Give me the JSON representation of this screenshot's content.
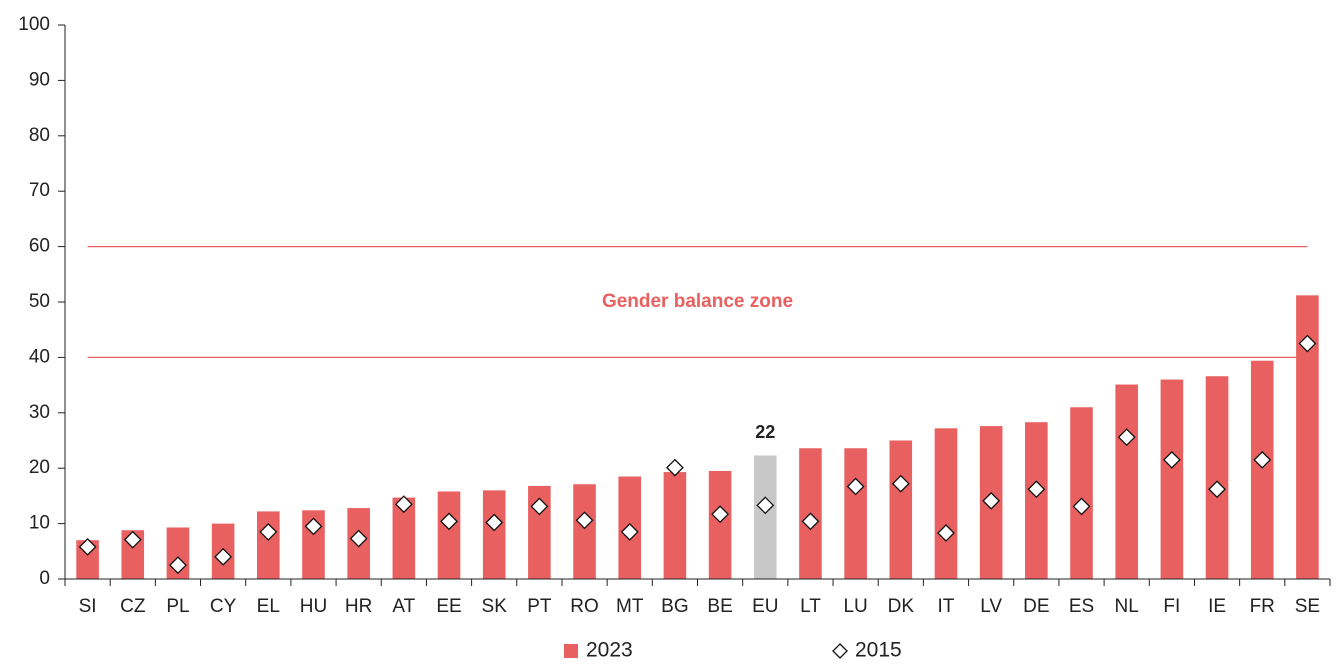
{
  "chart_data": {
    "type": "bar",
    "categories": [
      "SI",
      "CZ",
      "PL",
      "CY",
      "EL",
      "HU",
      "HR",
      "AT",
      "EE",
      "SK",
      "PT",
      "RO",
      "MT",
      "BG",
      "BE",
      "EU",
      "LT",
      "LU",
      "DK",
      "IT",
      "LV",
      "DE",
      "ES",
      "NL",
      "FI",
      "IE",
      "FR",
      "SE"
    ],
    "series": [
      {
        "name": "2023",
        "type": "bar",
        "color": "#e8605f",
        "colors": [
          "#e8605f",
          "#e8605f",
          "#e8605f",
          "#e8605f",
          "#e8605f",
          "#e8605f",
          "#e8605f",
          "#e8605f",
          "#e8605f",
          "#e8605f",
          "#e8605f",
          "#e8605f",
          "#e8605f",
          "#e8605f",
          "#e8605f",
          "#c8c8c8",
          "#e8605f",
          "#e8605f",
          "#e8605f",
          "#e8605f",
          "#e8605f",
          "#e8605f",
          "#e8605f",
          "#e8605f",
          "#e8605f",
          "#e8605f",
          "#e8605f",
          "#e8605f"
        ],
        "values": [
          7,
          8.8,
          9.3,
          10,
          12.2,
          12.4,
          12.8,
          14.7,
          15.8,
          16,
          16.8,
          17.1,
          18.5,
          19.3,
          19.5,
          22.3,
          23.6,
          23.6,
          25,
          27.2,
          27.6,
          28.3,
          31,
          35.1,
          36,
          36.6,
          39.4,
          51.2
        ],
        "value_labels": [
          null,
          null,
          null,
          null,
          null,
          null,
          null,
          null,
          null,
          null,
          null,
          null,
          null,
          null,
          null,
          "22",
          null,
          null,
          null,
          null,
          null,
          null,
          null,
          null,
          null,
          null,
          null,
          null
        ]
      },
      {
        "name": "2015",
        "type": "diamond",
        "color": "#ffffff",
        "values": [
          5.8,
          7.1,
          2.5,
          4,
          8.5,
          9.5,
          7.3,
          13.5,
          10.4,
          10.2,
          13.1,
          10.6,
          8.5,
          20.1,
          11.7,
          13.3,
          10.4,
          16.7,
          17.2,
          8.3,
          14.1,
          16.2,
          13.1,
          25.6,
          21.5,
          16.2,
          21.5,
          42.5
        ]
      }
    ],
    "ylim": [
      0,
      100
    ],
    "yticks": [
      0,
      10,
      20,
      30,
      40,
      50,
      60,
      70,
      80,
      90,
      100
    ],
    "reference_lines": [
      40,
      60
    ],
    "reference_color": "#e8605f",
    "annotation": "Gender balance zone",
    "legend": "bottom"
  }
}
